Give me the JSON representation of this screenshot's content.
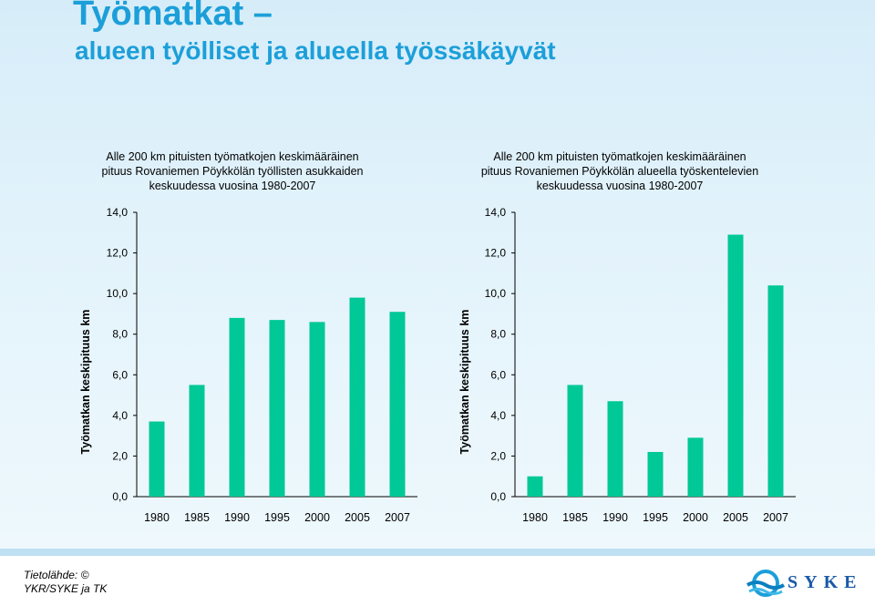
{
  "header": {
    "title": "Työmatkat –",
    "subtitle": "alueen työlliset ja alueella työssäkäyvät"
  },
  "colors": {
    "bar": "#00c896",
    "title": "#1c9fd9",
    "axis": "#000000"
  },
  "chart_data": [
    {
      "type": "bar",
      "title": "Alle 200 km pituisten työmatkojen keskimääräinen pituus Rovaniemen Pöykkölän työllisten asukkaiden keskuudessa vuosina 1980-2007",
      "title_lines": [
        "Alle 200 km pituisten työmatkojen keskimääräinen",
        "pituus Rovaniemen Pöykkölän työllisten asukkaiden",
        "keskuudessa vuosina 1980-2007"
      ],
      "ylabel": "Työmatkan keskipituus km",
      "xlabel": "",
      "categories": [
        "1980",
        "1985",
        "1990",
        "1995",
        "2000",
        "2005",
        "2007"
      ],
      "values": [
        3.7,
        5.5,
        8.8,
        8.7,
        8.6,
        9.8,
        9.1
      ],
      "ylim": [
        0,
        14
      ],
      "yticks": [
        "0,0",
        "2,0",
        "4,0",
        "6,0",
        "8,0",
        "10,0",
        "12,0",
        "14,0"
      ],
      "grid": false
    },
    {
      "type": "bar",
      "title": "Alle 200 km pituisten työmatkojen keskimääräinen pituus Rovaniemen Pöykkölän alueella työskentelevien keskuudessa vuosina 1980-2007",
      "title_lines": [
        "Alle 200 km pituisten työmatkojen keskimääräinen",
        "pituus Rovaniemen Pöykkölän alueella työskentelevien",
        "keskuudessa vuosina 1980-2007"
      ],
      "ylabel": "Työmatkan keskipituus km",
      "xlabel": "",
      "categories": [
        "1980",
        "1985",
        "1990",
        "1995",
        "2000",
        "2005",
        "2007"
      ],
      "values": [
        1.0,
        5.5,
        4.7,
        2.2,
        2.9,
        12.9,
        10.4
      ],
      "ylim": [
        0,
        14
      ],
      "yticks": [
        "0,0",
        "2,0",
        "4,0",
        "6,0",
        "8,0",
        "10,0",
        "12,0",
        "14,0"
      ],
      "grid": false
    }
  ],
  "footer": {
    "source_lines": [
      "Tietolähde: ©",
      "YKR/SYKE ja TK"
    ],
    "logo_text": "SYKE",
    "logo_icon": "syke-logo-icon"
  }
}
